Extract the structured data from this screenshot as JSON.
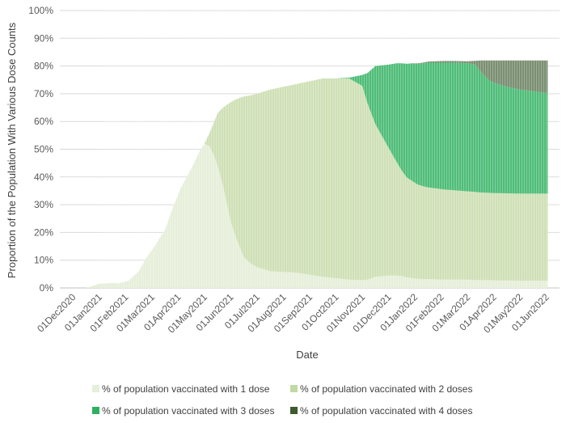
{
  "chart_data": {
    "type": "area",
    "stacked": true,
    "xlabel": "Date",
    "ylabel": "Proportion of the Population With Various Dose Counts",
    "ylim": [
      0,
      100
    ],
    "yticks": [
      "0%",
      "10%",
      "20%",
      "30%",
      "40%",
      "50%",
      "60%",
      "70%",
      "80%",
      "90%",
      "100%"
    ],
    "month_labels": [
      "01Dec2020",
      "01Jan2021",
      "01Feb2021",
      "01Mar2021",
      "01Apr2021",
      "01May2021",
      "01Jun2021",
      "01Jul2021",
      "01Aug2021",
      "01Sep2021",
      "01Oct2021",
      "01Nov2021",
      "01Dec2021",
      "01Jan2022",
      "01Feb2022",
      "01Mar2022",
      "01Apr2022",
      "01May2022",
      "01Jun2022"
    ],
    "x": [
      0,
      1,
      1.5,
      2,
      2.2,
      2.6,
      3,
      3.3,
      3.6,
      4,
      4.3,
      4.6,
      5,
      5.3,
      5.5,
      5.7,
      5.85,
      6,
      6.2,
      6.5,
      6.7,
      7,
      7.3,
      7.5,
      8,
      9,
      10,
      10.5,
      11,
      11.5,
      11.7,
      12,
      12.5,
      12.8,
      13,
      13.2,
      13.4,
      13.6,
      13.8,
      14,
      14.3,
      14.6,
      15,
      15.5,
      15.8,
      16,
      16.3,
      16.5,
      17,
      17.5,
      18,
      18.55
    ],
    "series": [
      {
        "name": "% of population vaccinated with 1 dose",
        "color": "#e6efda",
        "values": [
          0,
          0,
          1.5,
          1.8,
          1.6,
          2.5,
          6,
          11,
          15,
          21,
          29,
          36,
          43,
          49,
          52,
          51,
          48,
          44,
          37,
          24,
          18,
          11,
          8.5,
          7.5,
          6,
          5.5,
          4,
          3.5,
          3,
          2.8,
          3,
          4,
          4.5,
          4.5,
          4.3,
          3.8,
          3.5,
          3.3,
          3.2,
          3.2,
          3.1,
          3,
          3,
          3,
          2.9,
          2.8,
          2.8,
          2.7,
          2.7,
          2.6,
          2.6,
          2.6
        ]
      },
      {
        "name": "% of population vaccinated with 2 doses",
        "color": "#cfe0b6",
        "values": [
          0,
          0,
          0,
          0,
          0,
          0,
          0,
          0,
          0,
          0,
          0,
          0,
          0,
          0,
          0,
          5,
          11.5,
          19,
          28,
          43,
          50,
          58,
          61,
          62.5,
          65.5,
          68,
          71.5,
          72,
          72.5,
          70,
          63.5,
          55,
          46,
          41,
          38,
          36,
          35,
          34,
          33.5,
          33,
          32.8,
          32.5,
          32.2,
          31.8,
          31.7,
          31.6,
          31.5,
          31.5,
          31.4,
          31.4,
          31.4,
          31.4
        ]
      },
      {
        "name": "% of population vaccinated with 3 doses",
        "color": "#4fbd78",
        "values": [
          0,
          0,
          0,
          0,
          0,
          0,
          0,
          0,
          0,
          0,
          0,
          0,
          0,
          0,
          0,
          0,
          0,
          0,
          0,
          0,
          0,
          0,
          0,
          0,
          0,
          0,
          0,
          0,
          0.3,
          4,
          11,
          21,
          30,
          35.5,
          38.7,
          41,
          42.4,
          43.5,
          44.2,
          45,
          45.3,
          45.7,
          46,
          46.2,
          45.9,
          43.6,
          40.7,
          39.8,
          38.4,
          37.5,
          36.9,
          36.2
        ]
      },
      {
        "name": "% of population vaccinated with 4 doses",
        "color": "#7a8f72",
        "values": [
          0,
          0,
          0,
          0,
          0,
          0,
          0,
          0,
          0,
          0,
          0,
          0,
          0,
          0,
          0,
          0,
          0,
          0,
          0,
          0,
          0,
          0,
          0,
          0,
          0,
          0,
          0,
          0,
          0,
          0,
          0,
          0,
          0,
          0,
          0,
          0,
          0.1,
          0.2,
          0.3,
          0.4,
          0.5,
          0.6,
          0.6,
          0.7,
          1.4,
          4,
          7,
          8,
          9.5,
          10.5,
          11.1,
          11.8
        ]
      }
    ],
    "legend": [
      {
        "label": "% of population vaccinated with 1 dose",
        "color": "#e6efda"
      },
      {
        "label": "% of population vaccinated with 2 doses",
        "color": "#c3d9a4"
      },
      {
        "label": "% of population vaccinated with 3 doses",
        "color": "#2fb060"
      },
      {
        "label": "% of population vaccinated with 4 doses",
        "color": "#3f5a2c"
      }
    ]
  }
}
